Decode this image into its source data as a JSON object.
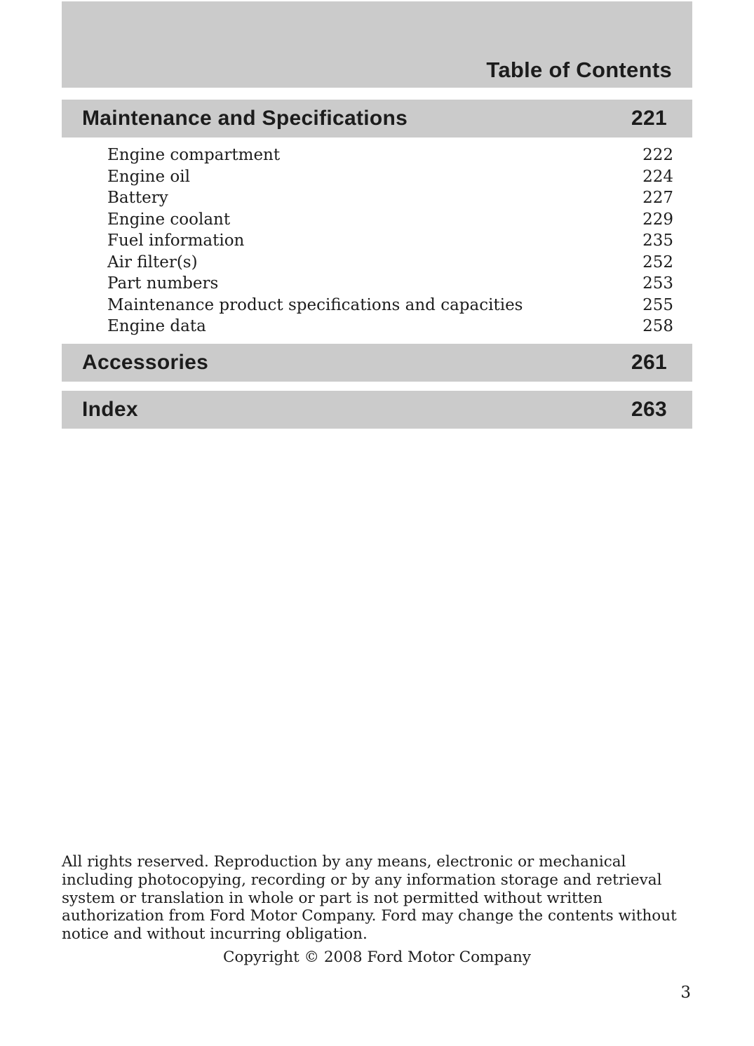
{
  "colors": {
    "bar_gray": "#cbcbcb",
    "ink": "#1c1c1c"
  },
  "header": {
    "title": "Table of Contents"
  },
  "sections": [
    {
      "label": "Maintenance and Specifications",
      "page": "221"
    },
    {
      "label": "Accessories",
      "page": "261"
    },
    {
      "label": "Index",
      "page": "263"
    }
  ],
  "toc": {
    "items": [
      {
        "label": "Engine compartment",
        "page": "222"
      },
      {
        "label": "Engine oil",
        "page": "224"
      },
      {
        "label": "Battery",
        "page": "227"
      },
      {
        "label": "Engine coolant",
        "page": "229"
      },
      {
        "label": "Fuel information",
        "page": "235"
      },
      {
        "label": "Air filter(s)",
        "page": "252"
      },
      {
        "label": "Part numbers",
        "page": "253"
      },
      {
        "label": "Maintenance product specifications and capacities",
        "page": "255"
      },
      {
        "label": "Engine data",
        "page": "258"
      }
    ]
  },
  "footer": {
    "legal_lines": [
      "All rights reserved. Reproduction by any means, electronic or mechanical",
      "including photocopying, recording or by any information storage and retrieval",
      "system or translation in whole or part is not permitted without written",
      "authorization from Ford Motor Company. Ford may change the contents without",
      "notice and without incurring obligation."
    ],
    "copyright": "Copyright © 2008 Ford Motor Company",
    "page_number": "3"
  }
}
